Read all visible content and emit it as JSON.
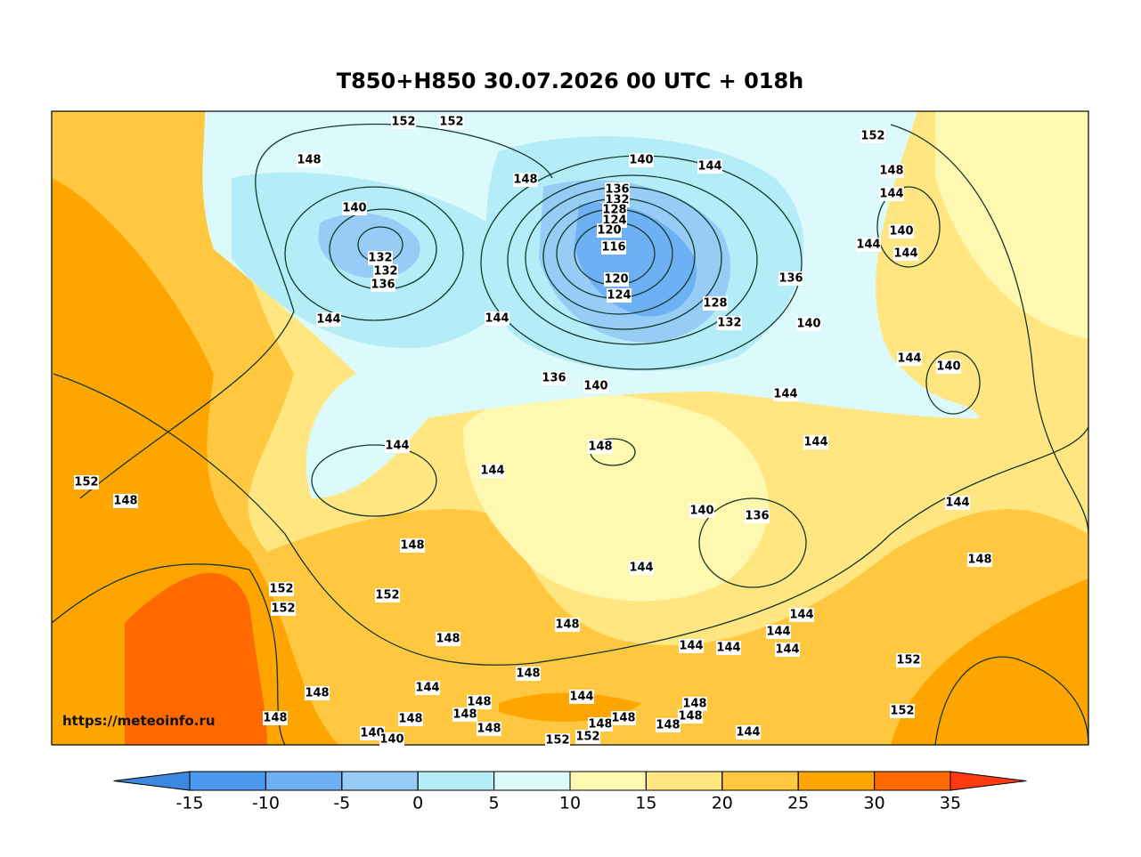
{
  "title": "T850+H850 30.07.2026 00 UTC + 018h",
  "watermark": "https://meteoinfo.ru",
  "colorbar": {
    "ticks": [
      -15,
      -10,
      -5,
      0,
      5,
      10,
      15,
      20,
      25,
      30,
      35
    ],
    "colors": [
      "#3c88e0",
      "#4c98ee",
      "#6eb0f4",
      "#96ccf6",
      "#b4ecf8",
      "#dcfafc",
      "#fff8b0",
      "#ffe680",
      "#ffc840",
      "#ffa500",
      "#ff6a00",
      "#ff3a10"
    ]
  },
  "contour_labels": [
    "152",
    "152",
    "148",
    "148",
    "140",
    "144",
    "152",
    "148",
    "144",
    "140",
    "144",
    "144",
    "140",
    "132",
    "132",
    "136",
    "136",
    "132",
    "128",
    "124",
    "120",
    "116",
    "120",
    "124",
    "128",
    "132",
    "136",
    "140",
    "144",
    "144",
    "136",
    "140",
    "144",
    "140",
    "144",
    "144",
    "148",
    "144",
    "144",
    "152",
    "148",
    "140",
    "136",
    "144",
    "148",
    "144",
    "148",
    "152",
    "152",
    "152",
    "148",
    "148",
    "144",
    "144",
    "144",
    "144",
    "144",
    "152",
    "148",
    "144",
    "148",
    "144",
    "148",
    "148",
    "148",
    "148",
    "148",
    "148",
    "148",
    "148",
    "148",
    "152",
    "148",
    "152",
    "152",
    "140",
    "140",
    "144"
  ]
}
